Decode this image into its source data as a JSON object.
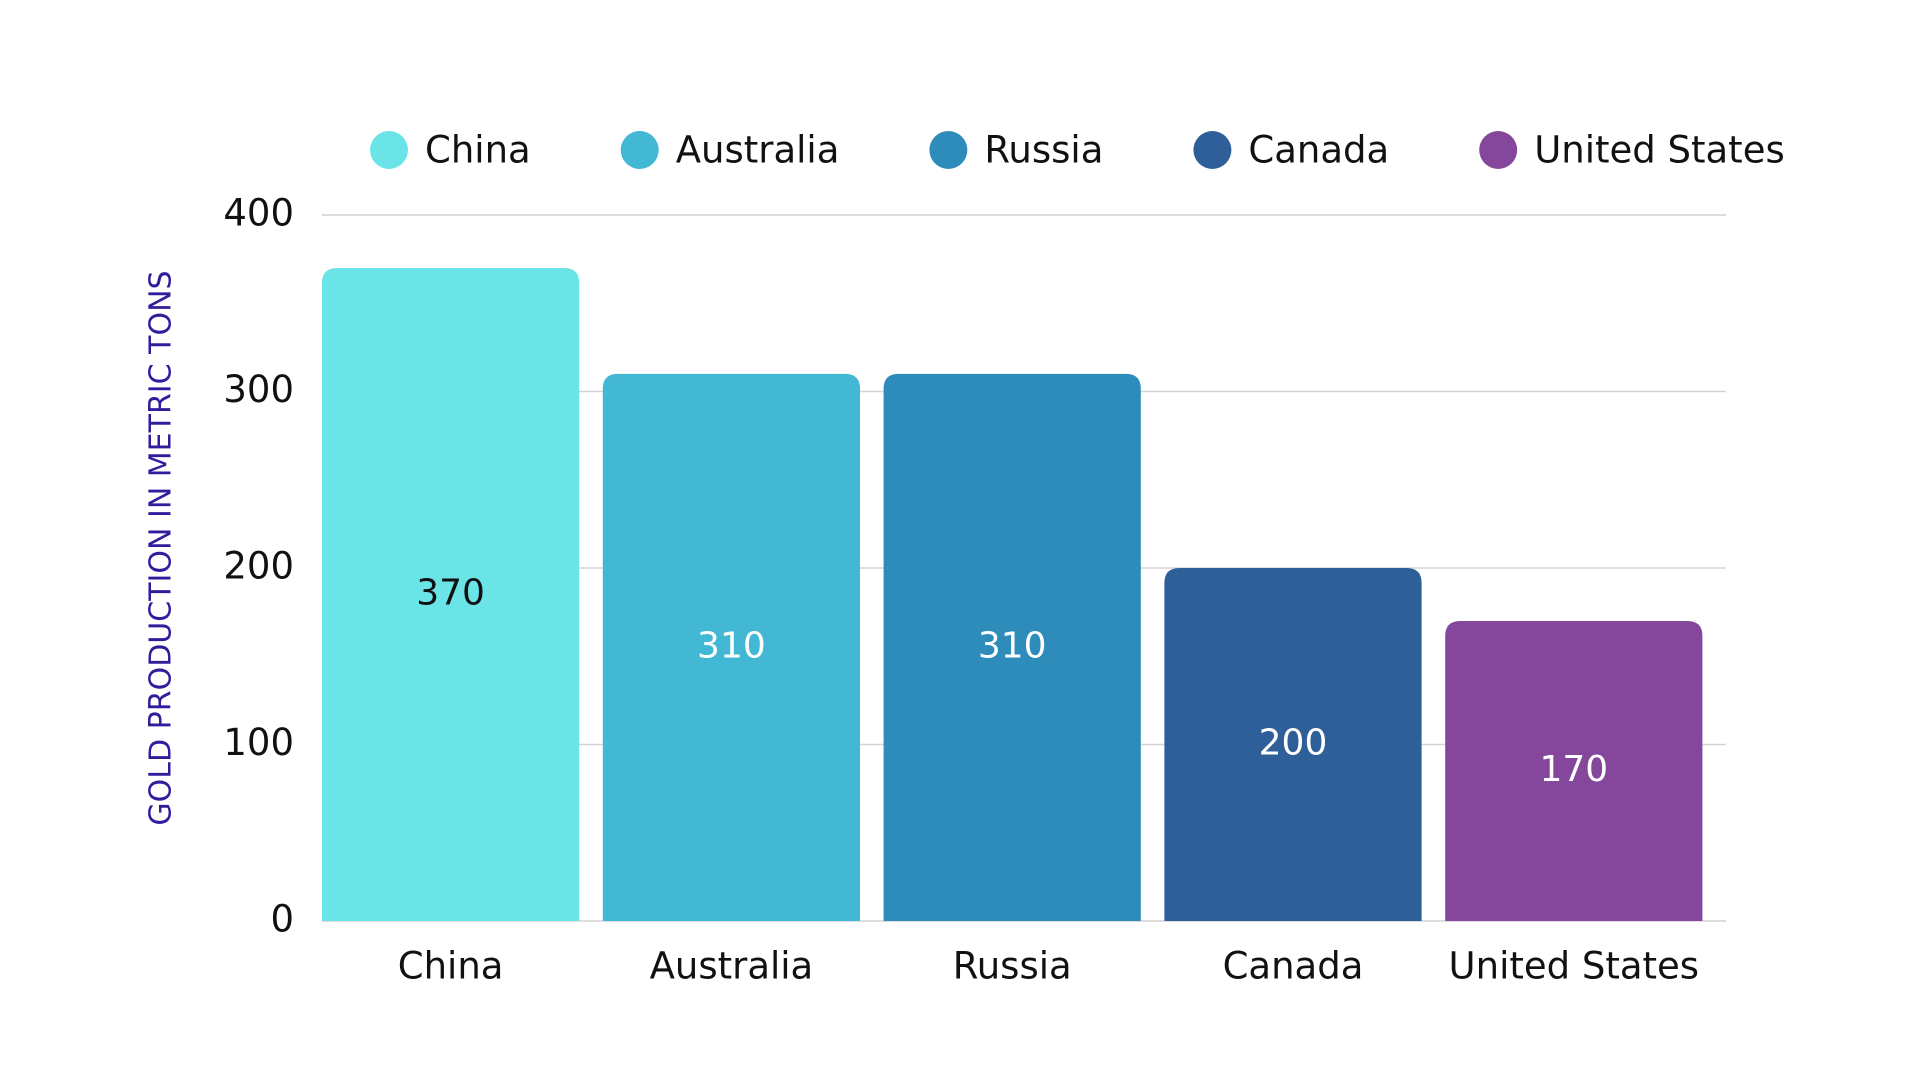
{
  "chart_data": {
    "type": "bar",
    "y_label": "GOLD PRODUCTION IN METRIC TONS",
    "categories": [
      "China",
      "Australia",
      "Russia",
      "Canada",
      "United States"
    ],
    "values": [
      370,
      310,
      310,
      200,
      170
    ],
    "colors": [
      "#6ae4e7",
      "#43b8d4",
      "#2e8cba",
      "#2f5f98",
      "#85479b"
    ],
    "ylim": [
      0,
      400
    ],
    "yticks": [
      0,
      100,
      200,
      300,
      400
    ],
    "grid": true,
    "legend": "top"
  }
}
